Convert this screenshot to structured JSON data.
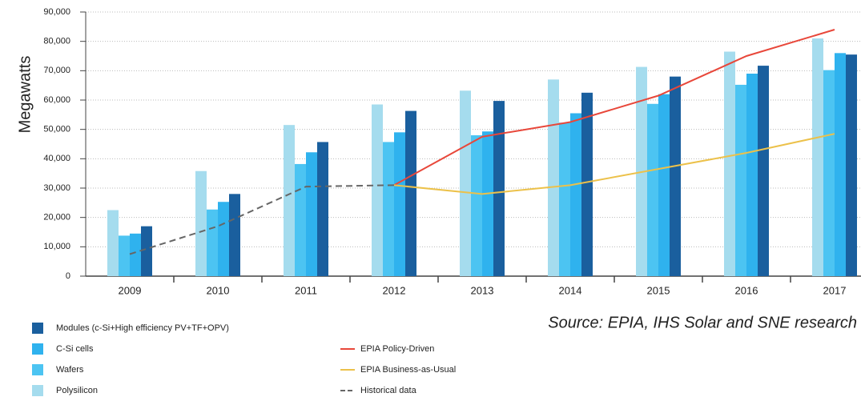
{
  "chart_data": {
    "type": "bar",
    "y_label": "Megawatts",
    "source": "Source: EPIA, IHS Solar and SNE research",
    "categories": [
      "2009",
      "2010",
      "2011",
      "2012",
      "2013",
      "2014",
      "2015",
      "2016",
      "2017"
    ],
    "series": [
      {
        "name": "Modules (c-Si+High efficiency PV+TF+OPV)",
        "color": "#1a5f9e",
        "values": [
          17000,
          28000,
          45700,
          56300,
          59700,
          62500,
          68000,
          71700,
          75500
        ]
      },
      {
        "name": "C-Si cells",
        "color": "#2fb2ee",
        "values": [
          14500,
          25300,
          42200,
          49000,
          49300,
          55500,
          62000,
          69000,
          76000
        ]
      },
      {
        "name": "Wafers",
        "color": "#4cc4f2",
        "values": [
          13800,
          22700,
          38200,
          45700,
          48000,
          52300,
          58700,
          65200,
          70200
        ]
      },
      {
        "name": "Polysilicon",
        "color": "#a5dcee",
        "values": [
          22500,
          35800,
          51500,
          58500,
          63200,
          67000,
          71300,
          76500,
          81000
        ]
      }
    ],
    "lines": [
      {
        "name": "EPIA Policy-Driven",
        "color": "#e8473a",
        "dashed": false,
        "values": [
          null,
          null,
          null,
          31000,
          47500,
          52500,
          61500,
          75000,
          84000
        ]
      },
      {
        "name": "EPIA Business-as-Usual",
        "color": "#ecc14a",
        "dashed": false,
        "values": [
          null,
          null,
          null,
          31000,
          28000,
          31000,
          36500,
          42000,
          48500
        ]
      },
      {
        "name": "Historical data",
        "color": "#666666",
        "dashed": true,
        "values": [
          7500,
          17000,
          30500,
          31000,
          null,
          null,
          null,
          null,
          null
        ]
      }
    ],
    "ylim": [
      0,
      90000
    ],
    "yticks": [
      0,
      {
        "value": 10000,
        "label": "10,000"
      },
      {
        "value": 20000,
        "label": "20,000"
      },
      {
        "value": 30000,
        "label": "30,000"
      },
      {
        "value": 40000,
        "label": "40,000"
      },
      {
        "value": 50000,
        "label": "50,000"
      },
      {
        "value": 60000,
        "label": "60,000"
      },
      {
        "value": 70000,
        "label": "70,000"
      },
      {
        "value": 80000,
        "label": "80,000"
      },
      {
        "value": 90000,
        "label": "90,000"
      }
    ],
    "grid": true
  }
}
